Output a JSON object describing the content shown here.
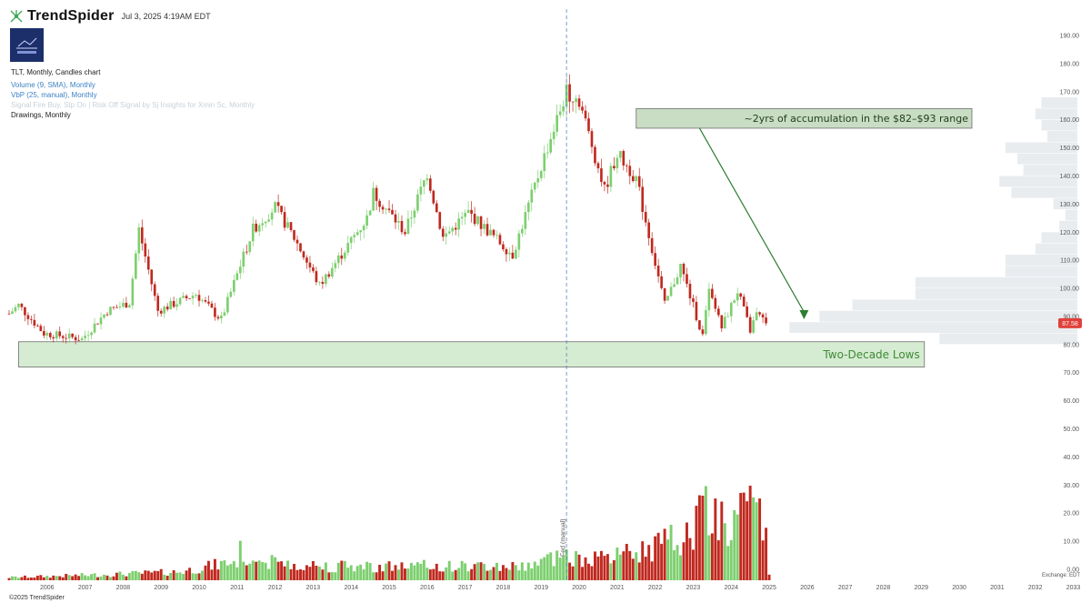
{
  "header": {
    "brand": "TrendSpider",
    "timestamp": "Jul 3, 2025 4:19AM EDT"
  },
  "legend": {
    "title": "TLT, Monthly, Candles chart",
    "volume": "Volume (9, SMA), Monthly",
    "vbp": "VbP (25, manual), Monthly",
    "faint": "Signal Fire Buy, Stp On | Risk Off Signal by Sj Insights for Xmin Sc, Monthly",
    "drawings": "Drawings, Monthly"
  },
  "footer": {
    "copyright": "©2025 TrendSpider",
    "exchange": "Exchange: EDT"
  },
  "colors": {
    "up": "#7dcf6f",
    "down": "#c0291f",
    "vbp": "#e9ecef",
    "price_tag": "#e0413a",
    "accent_green": "#2e7d32"
  },
  "chart_data": {
    "type": "candlestick",
    "ticker": "TLT",
    "timeframe": "Monthly",
    "y_ticks": [
      190,
      180,
      170,
      160,
      150,
      140,
      130,
      120,
      110,
      100,
      90,
      80,
      70,
      60,
      50,
      40,
      30,
      20,
      10,
      0
    ],
    "y_tick_labels": [
      "190.00",
      "180.00",
      "170.00",
      "160.00",
      "150.00",
      "140.00",
      "130.00",
      "120.00",
      "110.00",
      "100.00",
      "90.00",
      "80.00",
      "70.00",
      "60.00",
      "50.00",
      "40.00",
      "30.00",
      "20.00",
      "10.00",
      "0.00"
    ],
    "x_tick_labels": [
      "2006",
      "2007",
      "2008",
      "2009",
      "2010",
      "2011",
      "2012",
      "2013",
      "2014",
      "2015",
      "2016",
      "2017",
      "2018",
      "2019",
      "2020",
      "2021",
      "2022",
      "2023",
      "2024",
      "2025",
      "2026",
      "2027",
      "2028",
      "2029",
      "2030",
      "2031",
      "2032",
      "2033"
    ],
    "x_range": [
      "2005-07",
      "2033-06"
    ],
    "last_price": 87.58,
    "last_price_label": "87.58",
    "price_anchors": [
      {
        "date": "2005-07",
        "close": 91
      },
      {
        "date": "2005-10",
        "close": 94
      },
      {
        "date": "2006-06",
        "close": 84
      },
      {
        "date": "2007-06",
        "close": 82
      },
      {
        "date": "2008-02",
        "close": 92
      },
      {
        "date": "2008-09",
        "close": 95
      },
      {
        "date": "2008-12",
        "close": 121
      },
      {
        "date": "2009-06",
        "close": 92
      },
      {
        "date": "2010-06",
        "close": 98
      },
      {
        "date": "2010-12",
        "close": 91
      },
      {
        "date": "2011-02",
        "close": 89
      },
      {
        "date": "2011-12",
        "close": 121
      },
      {
        "date": "2012-07",
        "close": 129
      },
      {
        "date": "2013-01",
        "close": 118
      },
      {
        "date": "2013-09",
        "close": 101
      },
      {
        "date": "2014-12",
        "close": 125
      },
      {
        "date": "2015-02",
        "close": 134
      },
      {
        "date": "2015-12",
        "close": 120
      },
      {
        "date": "2016-07",
        "close": 141
      },
      {
        "date": "2016-12",
        "close": 118
      },
      {
        "date": "2017-08",
        "close": 127
      },
      {
        "date": "2018-10",
        "close": 112
      },
      {
        "date": "2019-08",
        "close": 147
      },
      {
        "date": "2020-03",
        "close": 170
      },
      {
        "date": "2020-07",
        "close": 167
      },
      {
        "date": "2021-03",
        "close": 135
      },
      {
        "date": "2021-07",
        "close": 148
      },
      {
        "date": "2022-01",
        "close": 139
      },
      {
        "date": "2022-10",
        "close": 94
      },
      {
        "date": "2023-03",
        "close": 108
      },
      {
        "date": "2023-10",
        "close": 83
      },
      {
        "date": "2023-12",
        "close": 99
      },
      {
        "date": "2024-04",
        "close": 86
      },
      {
        "date": "2024-09",
        "close": 99
      },
      {
        "date": "2025-01",
        "close": 85
      },
      {
        "date": "2025-03",
        "close": 91
      },
      {
        "date": "2025-06",
        "close": 87.6
      }
    ],
    "volume_anchors": [
      {
        "date": "2005-07",
        "v": 1
      },
      {
        "date": "2008-01",
        "v": 2
      },
      {
        "date": "2010-01",
        "v": 3
      },
      {
        "date": "2011-08",
        "v": 7
      },
      {
        "date": "2014-01",
        "v": 5
      },
      {
        "date": "2016-01",
        "v": 5
      },
      {
        "date": "2019-01",
        "v": 5
      },
      {
        "date": "2020-03",
        "v": 9
      },
      {
        "date": "2021-01",
        "v": 7
      },
      {
        "date": "2022-01",
        "v": 10
      },
      {
        "date": "2023-06",
        "v": 16
      },
      {
        "date": "2023-10",
        "v": 27
      },
      {
        "date": "2024-06",
        "v": 20
      },
      {
        "date": "2025-01",
        "v": 25
      },
      {
        "date": "2025-06",
        "v": 18
      }
    ],
    "volume_spikes": [
      {
        "date": "2011-08",
        "v": 14
      },
      {
        "date": "2020-03",
        "v": 11
      },
      {
        "date": "2023-10",
        "v": 30
      },
      {
        "date": "2024-02",
        "v": 29
      },
      {
        "date": "2024-12",
        "v": 28
      },
      {
        "date": "2025-04",
        "v": 29
      }
    ],
    "volume_by_price": [
      {
        "low": 80,
        "high": 84,
        "size": 0.46
      },
      {
        "low": 84,
        "high": 88,
        "size": 0.96
      },
      {
        "low": 88,
        "high": 92,
        "size": 0.86
      },
      {
        "low": 92,
        "high": 96,
        "size": 0.75
      },
      {
        "low": 96,
        "high": 100,
        "size": 0.54
      },
      {
        "low": 100,
        "high": 104,
        "size": 0.54
      },
      {
        "low": 104,
        "high": 108,
        "size": 0.24
      },
      {
        "low": 108,
        "high": 112,
        "size": 0.24
      },
      {
        "low": 112,
        "high": 116,
        "size": 0.14
      },
      {
        "low": 116,
        "high": 120,
        "size": 0.12
      },
      {
        "low": 120,
        "high": 124,
        "size": 0.06
      },
      {
        "low": 124,
        "high": 128,
        "size": 0.04
      },
      {
        "low": 128,
        "high": 132,
        "size": 0.08
      },
      {
        "low": 132,
        "high": 136,
        "size": 0.22
      },
      {
        "low": 136,
        "high": 140,
        "size": 0.26
      },
      {
        "low": 140,
        "high": 144,
        "size": 0.18
      },
      {
        "low": 144,
        "high": 148,
        "size": 0.2
      },
      {
        "low": 148,
        "high": 152,
        "size": 0.24
      },
      {
        "low": 152,
        "high": 156,
        "size": 0.1
      },
      {
        "low": 156,
        "high": 160,
        "size": 0.12
      },
      {
        "low": 160,
        "high": 164,
        "size": 0.14
      },
      {
        "low": 164,
        "high": 168,
        "size": 0.12
      }
    ],
    "vertical_marker": {
      "date": "2020-03",
      "label": "Fed (manual)"
    },
    "annotations": [
      {
        "text": "~2yrs of accumulation in the $82–$93 range",
        "x_start": "2022-01",
        "x_end": "2030-11",
        "y_low": 157,
        "y_high": 164,
        "arrow_from": {
          "date": "2023-09",
          "price": 157
        },
        "arrow_to": {
          "date": "2026-06",
          "price": 89
        }
      },
      {
        "text": "Two-Decade Lows",
        "x_start": "2005-10",
        "x_end": "2029-08",
        "y_low": 72,
        "y_high": 81
      }
    ]
  }
}
